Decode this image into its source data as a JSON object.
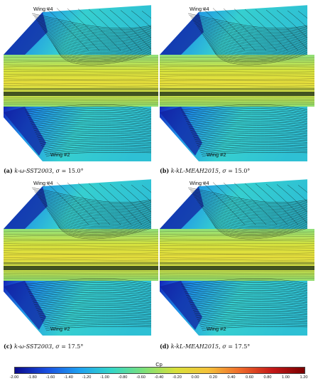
{
  "panels": [
    {
      "id": "a",
      "caption_tag": "(a)",
      "turb": "k-ω-SST2003",
      "sigma_sym": "σ",
      "sigma_value": "= 15.0°",
      "wing_top": "Wing #4",
      "wing_bottom": "Wing #2"
    },
    {
      "id": "b",
      "caption_tag": "(b)",
      "turb": "k-kL-MEAH2015",
      "sigma_sym": "σ",
      "sigma_value": "= 15.0°",
      "wing_top": "Wing #4",
      "wing_bottom": "Wing #2"
    },
    {
      "id": "c",
      "caption_tag": "(c)",
      "turb": "k-ω-SST2003",
      "sigma_sym": "σ",
      "sigma_value": "= 17.5°",
      "wing_top": "Wing #4",
      "wing_bottom": "Wing #2"
    },
    {
      "id": "d",
      "caption_tag": "(d)",
      "turb": "k-kL-MEAH2015",
      "sigma_sym": "σ",
      "sigma_value": "= 17.5°",
      "wing_top": "Wing #4",
      "wing_bottom": "Wing #2"
    }
  ],
  "colorbar": {
    "title": "Cp",
    "ticks": [
      "-2.00",
      "-1.80",
      "-1.60",
      "-1.40",
      "-1.20",
      "-1.00",
      "-0.80",
      "-0.60",
      "-0.40",
      "-0.20",
      "0.00",
      "0.20",
      "0.40",
      "0.60",
      "0.80",
      "1.00",
      "1.20"
    ],
    "min": -2.0,
    "max": 1.2,
    "colors": [
      "#0a0a8c",
      "#1a4fe0",
      "#1fa0f0",
      "#34d6c8",
      "#7be07a",
      "#d8e03a",
      "#f5c23a",
      "#ef6a2a",
      "#c41818",
      "#7a0000"
    ]
  }
}
